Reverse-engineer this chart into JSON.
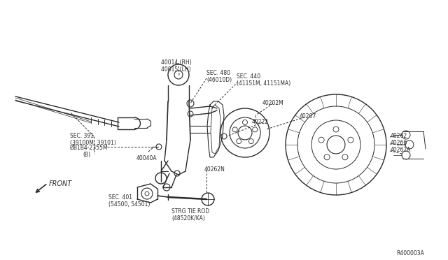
{
  "bg_color": "#ffffff",
  "line_color": "#2a2a2a",
  "figsize": [
    6.4,
    3.72
  ],
  "dpi": 100,
  "labels": {
    "part_40014_rh": "40014 (RH)",
    "part_40015_lh": "40015 (LH)",
    "sec_480": "SEC. 480",
    "sec_480_sub": "(46010D)",
    "sec_440": "SEC. 440",
    "sec_440_sub": "(41151M, 41151MA)",
    "sec_391": "SEC. 391",
    "sec_391_sub": "(39100M, 39101)",
    "bolt_b": "ØB1B4-2355M",
    "bolt_b_sub": "(B)",
    "part_40040a": "40040A",
    "part_40202m": "40202M",
    "part_40222": "40222",
    "part_40207": "40207",
    "part_40262n": "40262N",
    "sec_401": "SEC. 401",
    "sec_401_sub": "(54500, 54501)",
    "strg": "STRG TIE ROD",
    "strg_sub": "(48520K/KA)",
    "part_40262": "40262",
    "part_40266": "40266",
    "part_40262a": "40262A",
    "front": "FRONT",
    "ref": "R400003A"
  }
}
